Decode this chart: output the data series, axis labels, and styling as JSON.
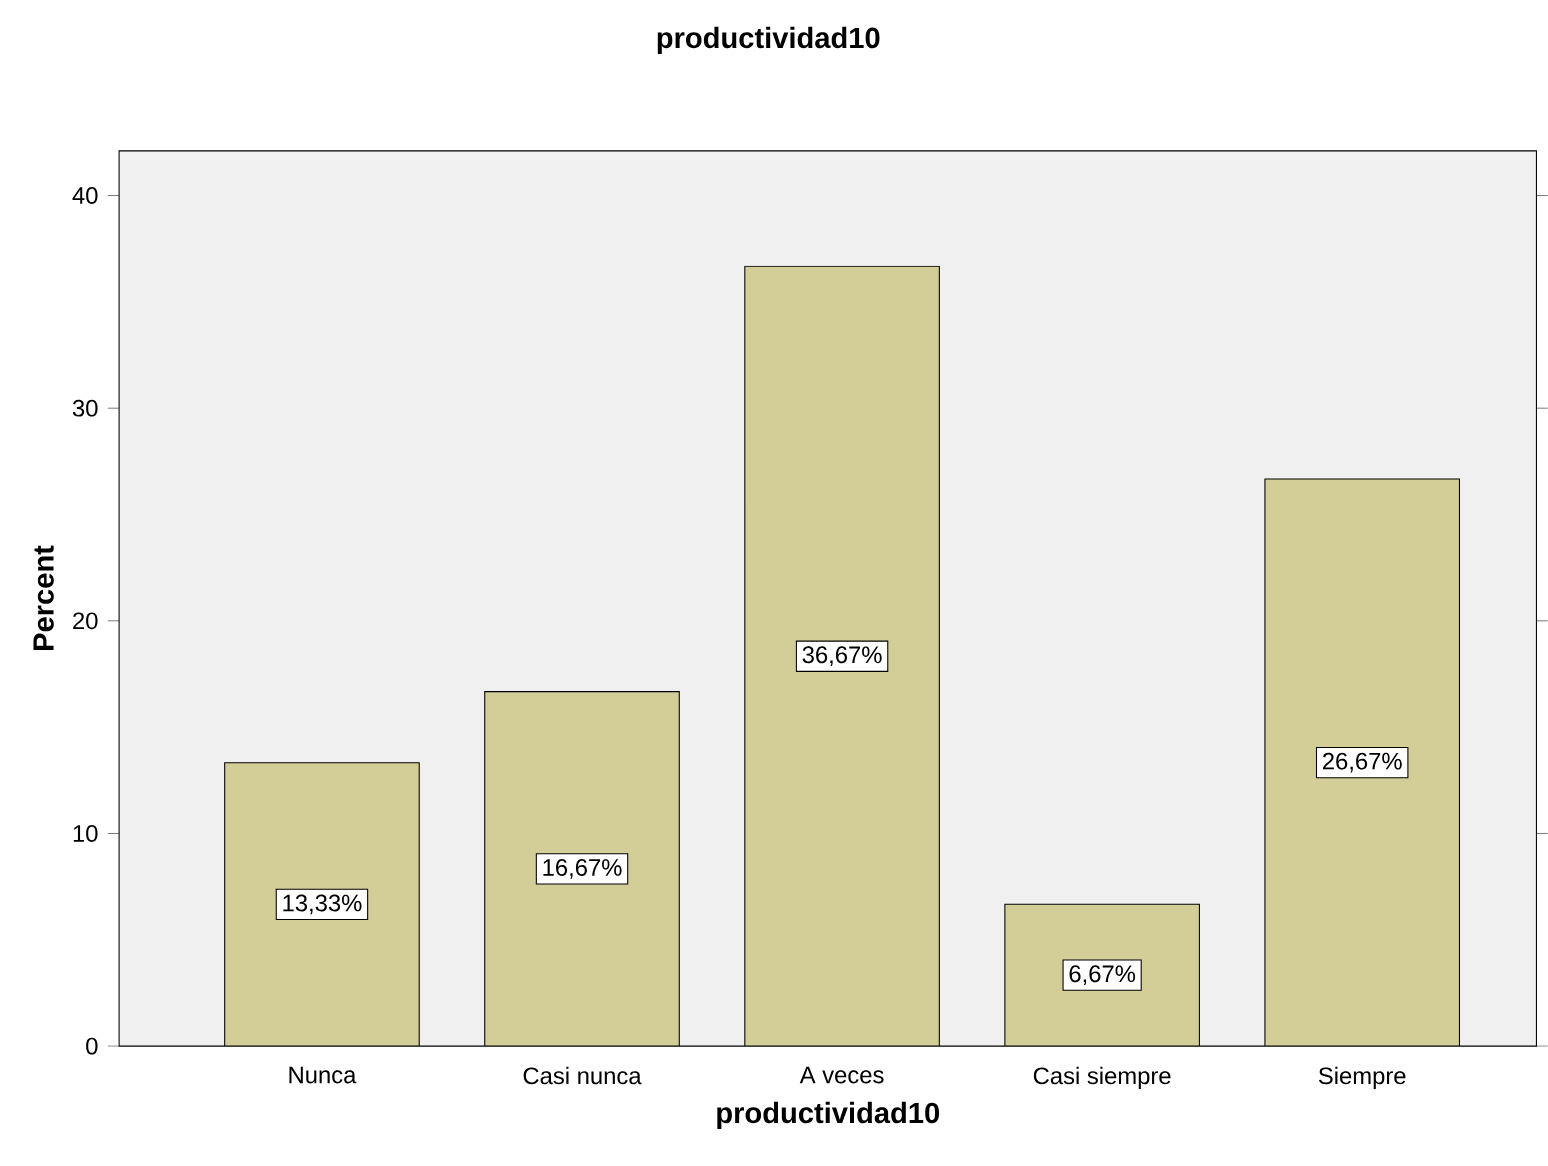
{
  "chart_data": {
    "type": "bar",
    "title": "productividad10",
    "xlabel": "productividad10",
    "ylabel": "Percent",
    "categories": [
      "Nunca",
      "Casi nunca",
      "A veces",
      "Casi siempre",
      "Siempre"
    ],
    "values": [
      13.33,
      16.67,
      36.67,
      6.67,
      26.67
    ],
    "value_labels": [
      "13,33%",
      "16,67%",
      "36,67%",
      "6,67%",
      "26,67%"
    ],
    "color": "#d3ce97",
    "ylim": [
      0,
      42.1
    ],
    "yticks": [
      0,
      10,
      20,
      30,
      40
    ]
  }
}
